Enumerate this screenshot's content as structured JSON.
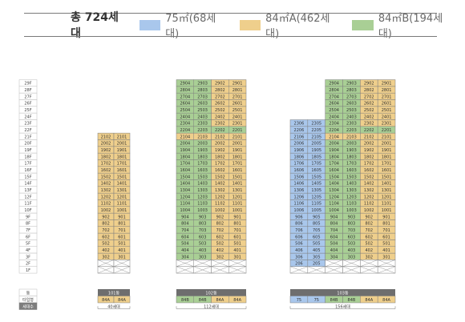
{
  "legend": {
    "total": "총 724세대",
    "items": [
      {
        "label": "75㎡(68세대)",
        "color": "#a9c7ec"
      },
      {
        "label": "84㎡A(462세대)",
        "color": "#efcf8c"
      },
      {
        "label": "84㎡B(194세대)",
        "color": "#a9cf95"
      }
    ]
  },
  "colors": {
    "t75": "#a9c7ec",
    "t84A": "#efcf8c",
    "t84B": "#a9cf95",
    "border": "#7f7f7f",
    "dong_bar": "#6e6e6e",
    "header_bg": "#ebebeb"
  },
  "floors": [
    "29F",
    "28F",
    "27F",
    "26F",
    "25F",
    "24F",
    "23F",
    "22F",
    "21F",
    "20F",
    "19F",
    "18F",
    "17F",
    "16F",
    "15F",
    "14F",
    "13F",
    "12F",
    "11F",
    "10F",
    "9F",
    "8F",
    "7F",
    "6F",
    "5F",
    "4F",
    "3F",
    "2F",
    "1F"
  ],
  "row_labels": [
    "동",
    "타입형",
    "세대수"
  ],
  "buildings": [
    {
      "name": "101동",
      "lines": [
        "02",
        "01"
      ],
      "top_floor": 21,
      "types": [
        "t84A",
        "t84A"
      ],
      "type_labels": [
        "84A",
        "84A"
      ],
      "count": "40세대"
    },
    {
      "name": "102동",
      "lines": [
        "04",
        "03",
        "02",
        "01"
      ],
      "top_floor": 29,
      "types": [
        "t84B",
        "t84B",
        "t84A",
        "t84A"
      ],
      "type_labels": [
        "84B",
        "84B",
        "84A",
        "84A"
      ],
      "count": "112세대",
      "type_by_floor": {
        "21": [
          "t84A",
          "t84A",
          "t84A",
          "t84A"
        ],
        "22": [
          "t84B",
          "t84B",
          "t84B",
          "t84B"
        ]
      }
    },
    {
      "name": "103동",
      "lines": [
        "06",
        "05",
        "04",
        "03",
        "02",
        "01"
      ],
      "top_floor": 29,
      "start_floor": {
        "06": 2,
        "05": 2
      },
      "top_by_line": {
        "06": 23,
        "05": 23
      },
      "types": [
        "t75",
        "t75",
        "t84B",
        "t84B",
        "t84A",
        "t84A"
      ],
      "type_labels": [
        "75",
        "75",
        "84B",
        "84B",
        "84A",
        "84A"
      ],
      "count": "156세대",
      "type_by_floor": {
        "21": [
          "t75",
          "t75",
          "t84A",
          "t84A",
          "t84A",
          "t84A"
        ],
        "22": [
          "t75",
          "t75",
          "t84B",
          "t84B",
          "t84B",
          "t84B"
        ]
      }
    }
  ]
}
